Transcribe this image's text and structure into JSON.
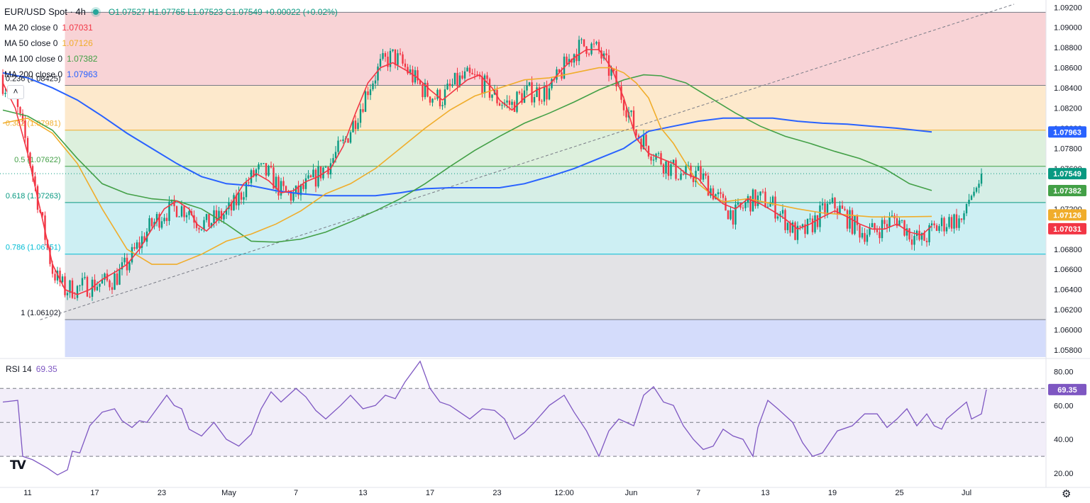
{
  "header": {
    "symbol": "EUR/USD Spot · 4h",
    "ohlc": "O1.07527 H1.07765 L1.07523 C1.07549 +0.00022 (+0.02%)"
  },
  "ma_legend": [
    {
      "label": "MA 20 close 0",
      "value": "1.07031",
      "color": "#f23645"
    },
    {
      "label": "MA 50 close 0",
      "value": "1.07126",
      "color": "#f0ad2b"
    },
    {
      "label": "MA 100 close 0",
      "value": "1.07382",
      "color": "#43a047"
    },
    {
      "label": "MA 200 close 0",
      "value": "1.07963",
      "color": "#2962ff"
    }
  ],
  "rsi_legend": {
    "label": "RSI 14",
    "value": "69.35"
  },
  "chart_data": {
    "type": "candlestick",
    "title": "EUR/USD Spot · 4h",
    "price_axis": {
      "range": [
        1.0573,
        1.0923
      ],
      "ticks": [
        "1.09200",
        "1.09000",
        "1.08800",
        "1.08600",
        "1.08400",
        "1.08200",
        "1.08000",
        "1.07800",
        "1.07600",
        "1.07400",
        "1.07200",
        "1.07000",
        "1.06800",
        "1.06600",
        "1.06400",
        "1.06200",
        "1.06000",
        "1.05800"
      ]
    },
    "time_axis": {
      "labels": [
        "11",
        "17",
        "23",
        "May",
        "7",
        "13",
        "17",
        "23",
        "12:00",
        "Jun",
        "7",
        "13",
        "19",
        "25",
        "Jul"
      ]
    },
    "fibonacci": [
      {
        "label": "0.236 (1.08425)",
        "level": 1.08425,
        "fill": "#f8d3d6"
      },
      {
        "label": "0.382 (1.07981)",
        "level": 1.07981,
        "fill": "#fde9cc"
      },
      {
        "label": "0.5 (1.07622)",
        "level": 1.07622,
        "fill": "#ddf0dd"
      },
      {
        "label": "0.618 (1.07263)",
        "level": 1.07263,
        "fill": "#d6eee6"
      },
      {
        "label": "0.786 (1.06751)",
        "level": 1.06751,
        "fill": "#cdeff3"
      },
      {
        "label": "1 (1.06102)",
        "level": 1.06102,
        "fill": "#e3e3e6"
      }
    ],
    "fib_top_level": 1.0915,
    "fib_bottom_extension_fill": "#d4dcfb",
    "price_tags": [
      {
        "value": "1.07963",
        "price": 1.07963,
        "color": "#2962ff"
      },
      {
        "value": "1.07549",
        "price": 1.07549,
        "color": "#089981"
      },
      {
        "value": "1.07382",
        "price": 1.07382,
        "color": "#43a047"
      },
      {
        "value": "1.07126",
        "price": 1.07126,
        "color": "#f0ad2b"
      },
      {
        "value": "1.07031",
        "price": 1.07031,
        "color": "#f23645"
      }
    ],
    "last_price": 1.07549,
    "ma20": [
      [
        0,
        1.0845
      ],
      [
        5,
        1.082
      ],
      [
        10,
        1.0775
      ],
      [
        15,
        1.072
      ],
      [
        20,
        1.0665
      ],
      [
        25,
        1.064
      ],
      [
        30,
        1.0635
      ],
      [
        35,
        1.064
      ],
      [
        40,
        1.065
      ],
      [
        45,
        1.0657
      ],
      [
        50,
        1.0665
      ],
      [
        55,
        1.068
      ],
      [
        60,
        1.07
      ],
      [
        65,
        1.072
      ],
      [
        70,
        1.0728
      ],
      [
        75,
        1.072
      ],
      [
        78,
        1.0705
      ],
      [
        82,
        1.0698
      ],
      [
        87,
        1.071
      ],
      [
        92,
        1.0725
      ],
      [
        97,
        1.0745
      ],
      [
        102,
        1.0755
      ],
      [
        107,
        1.0748
      ],
      [
        112,
        1.0736
      ],
      [
        117,
        1.0738
      ],
      [
        122,
        1.0747
      ],
      [
        127,
        1.0752
      ],
      [
        132,
        1.076
      ],
      [
        137,
        1.0782
      ],
      [
        142,
        1.0815
      ],
      [
        147,
        1.0845
      ],
      [
        152,
        1.086
      ],
      [
        157,
        1.0865
      ],
      [
        162,
        1.0858
      ],
      [
        167,
        1.085
      ],
      [
        172,
        1.0838
      ],
      [
        177,
        1.0828
      ],
      [
        182,
        1.0838
      ],
      [
        187,
        1.0848
      ],
      [
        192,
        1.0853
      ],
      [
        197,
        1.084
      ],
      [
        200,
        1.0828
      ],
      [
        205,
        1.0818
      ],
      [
        210,
        1.083
      ],
      [
        215,
        1.0838
      ],
      [
        220,
        1.0843
      ],
      [
        225,
        1.0858
      ],
      [
        230,
        1.087
      ],
      [
        235,
        1.0878
      ],
      [
        240,
        1.0878
      ],
      [
        245,
        1.086
      ],
      [
        250,
        1.083
      ],
      [
        255,
        1.079
      ],
      [
        260,
        1.0775
      ],
      [
        265,
        1.077
      ],
      [
        270,
        1.0765
      ],
      [
        275,
        1.0755
      ],
      [
        280,
        1.075
      ],
      [
        285,
        1.0735
      ],
      [
        290,
        1.0725
      ],
      [
        295,
        1.072
      ],
      [
        300,
        1.073
      ],
      [
        305,
        1.0725
      ],
      [
        310,
        1.0718
      ],
      [
        315,
        1.071
      ],
      [
        320,
        1.07
      ],
      [
        325,
        1.0705
      ],
      [
        330,
        1.0712
      ],
      [
        335,
        1.0718
      ],
      [
        340,
        1.0712
      ],
      [
        345,
        1.0705
      ],
      [
        350,
        1.07
      ],
      [
        355,
        1.07
      ],
      [
        360,
        1.0705
      ],
      [
        365,
        1.0697
      ],
      [
        370,
        1.0694
      ],
      [
        374,
        1.0703
      ]
    ],
    "ma50": [
      [
        0,
        1.0805
      ],
      [
        10,
        1.081
      ],
      [
        20,
        1.0795
      ],
      [
        30,
        1.0765
      ],
      [
        40,
        1.072
      ],
      [
        50,
        1.068
      ],
      [
        60,
        1.0665
      ],
      [
        70,
        1.0665
      ],
      [
        80,
        1.0675
      ],
      [
        90,
        1.0688
      ],
      [
        100,
        1.0695
      ],
      [
        110,
        1.0705
      ],
      [
        120,
        1.0718
      ],
      [
        130,
        1.0735
      ],
      [
        140,
        1.0745
      ],
      [
        150,
        1.076
      ],
      [
        160,
        1.078
      ],
      [
        170,
        1.08
      ],
      [
        180,
        1.0818
      ],
      [
        190,
        1.0832
      ],
      [
        200,
        1.084
      ],
      [
        210,
        1.0848
      ],
      [
        220,
        1.085
      ],
      [
        230,
        1.0855
      ],
      [
        240,
        1.086
      ],
      [
        245,
        1.086
      ],
      [
        250,
        1.0855
      ],
      [
        255,
        1.0845
      ],
      [
        260,
        1.083
      ],
      [
        265,
        1.08
      ],
      [
        270,
        1.0785
      ],
      [
        275,
        1.0765
      ],
      [
        280,
        1.0745
      ],
      [
        285,
        1.0735
      ],
      [
        290,
        1.0727
      ],
      [
        300,
        1.073
      ],
      [
        310,
        1.0725
      ],
      [
        320,
        1.072
      ],
      [
        330,
        1.0716
      ],
      [
        340,
        1.0714
      ],
      [
        350,
        1.0712
      ],
      [
        360,
        1.0712
      ],
      [
        374,
        1.07126
      ]
    ],
    "ma100": [
      [
        0,
        1.0818
      ],
      [
        10,
        1.0812
      ],
      [
        20,
        1.0798
      ],
      [
        30,
        1.077
      ],
      [
        40,
        1.0745
      ],
      [
        50,
        1.0735
      ],
      [
        60,
        1.073
      ],
      [
        70,
        1.0728
      ],
      [
        80,
        1.072
      ],
      [
        90,
        1.0705
      ],
      [
        100,
        1.0688
      ],
      [
        110,
        1.0687
      ],
      [
        120,
        1.069
      ],
      [
        130,
        1.0697
      ],
      [
        140,
        1.0707
      ],
      [
        150,
        1.0718
      ],
      [
        160,
        1.073
      ],
      [
        170,
        1.0745
      ],
      [
        180,
        1.0762
      ],
      [
        190,
        1.0778
      ],
      [
        200,
        1.0792
      ],
      [
        210,
        1.0805
      ],
      [
        220,
        1.0815
      ],
      [
        230,
        1.0826
      ],
      [
        240,
        1.0838
      ],
      [
        250,
        1.0848
      ],
      [
        258,
        1.0853
      ],
      [
        265,
        1.0852
      ],
      [
        275,
        1.0845
      ],
      [
        285,
        1.083
      ],
      [
        295,
        1.0815
      ],
      [
        305,
        1.0802
      ],
      [
        315,
        1.0792
      ],
      [
        325,
        1.0785
      ],
      [
        335,
        1.0777
      ],
      [
        345,
        1.077
      ],
      [
        355,
        1.076
      ],
      [
        365,
        1.0745
      ],
      [
        374,
        1.07382
      ]
    ],
    "ma200": [
      [
        0,
        1.0855
      ],
      [
        10,
        1.085
      ],
      [
        20,
        1.084
      ],
      [
        30,
        1.0828
      ],
      [
        40,
        1.0812
      ],
      [
        50,
        1.0795
      ],
      [
        60,
        1.078
      ],
      [
        70,
        1.0765
      ],
      [
        80,
        1.0752
      ],
      [
        90,
        1.0745
      ],
      [
        100,
        1.0743
      ],
      [
        110,
        1.0738
      ],
      [
        120,
        1.0735
      ],
      [
        130,
        1.0733
      ],
      [
        140,
        1.0733
      ],
      [
        150,
        1.0733
      ],
      [
        160,
        1.0736
      ],
      [
        170,
        1.074
      ],
      [
        180,
        1.0741
      ],
      [
        190,
        1.0741
      ],
      [
        200,
        1.0741
      ],
      [
        210,
        1.0745
      ],
      [
        220,
        1.0752
      ],
      [
        230,
        1.076
      ],
      [
        240,
        1.077
      ],
      [
        250,
        1.078
      ],
      [
        260,
        1.0797
      ],
      [
        270,
        1.0802
      ],
      [
        280,
        1.0807
      ],
      [
        290,
        1.081
      ],
      [
        300,
        1.081
      ],
      [
        310,
        1.081
      ],
      [
        320,
        1.0807
      ],
      [
        330,
        1.0805
      ],
      [
        340,
        1.0804
      ],
      [
        350,
        1.0802
      ],
      [
        360,
        1.08
      ],
      [
        374,
        1.07963
      ]
    ],
    "trendline": {
      "from": [
        15,
        1.061
      ],
      "to": [
        390,
        1.0909
      ]
    },
    "rsi": {
      "label": "RSI 14",
      "value": 69.35,
      "levels": [
        70,
        50,
        30
      ],
      "ticks": [
        "80.00",
        "60.00",
        "40.00",
        "20.00"
      ],
      "range": [
        15,
        86
      ],
      "points": [
        [
          0,
          62
        ],
        [
          6,
          63
        ],
        [
          8,
          30
        ],
        [
          12,
          28
        ],
        [
          18,
          23
        ],
        [
          22,
          19
        ],
        [
          26,
          22
        ],
        [
          28,
          33
        ],
        [
          31,
          32
        ],
        [
          35,
          48
        ],
        [
          40,
          56
        ],
        [
          45,
          58
        ],
        [
          48,
          51
        ],
        [
          52,
          47
        ],
        [
          55,
          51
        ],
        [
          58,
          50
        ],
        [
          62,
          58
        ],
        [
          66,
          66
        ],
        [
          69,
          60
        ],
        [
          72,
          58
        ],
        [
          75,
          46
        ],
        [
          80,
          42
        ],
        [
          85,
          50
        ],
        [
          90,
          40
        ],
        [
          95,
          36
        ],
        [
          100,
          43
        ],
        [
          104,
          58
        ],
        [
          108,
          68
        ],
        [
          112,
          62
        ],
        [
          118,
          70
        ],
        [
          122,
          65
        ],
        [
          126,
          57
        ],
        [
          130,
          52
        ],
        [
          136,
          60
        ],
        [
          140,
          66
        ],
        [
          145,
          58
        ],
        [
          150,
          60
        ],
        [
          154,
          66
        ],
        [
          158,
          64
        ],
        [
          162,
          74
        ],
        [
          166,
          82
        ],
        [
          168,
          86
        ],
        [
          172,
          70
        ],
        [
          176,
          62
        ],
        [
          180,
          60
        ],
        [
          184,
          56
        ],
        [
          188,
          52
        ],
        [
          193,
          58
        ],
        [
          198,
          57
        ],
        [
          202,
          52
        ],
        [
          206,
          40
        ],
        [
          210,
          44
        ],
        [
          214,
          50
        ],
        [
          220,
          60
        ],
        [
          226,
          66
        ],
        [
          230,
          56
        ],
        [
          235,
          45
        ],
        [
          240,
          30
        ],
        [
          244,
          45
        ],
        [
          248,
          52
        ],
        [
          254,
          48
        ],
        [
          258,
          66
        ],
        [
          262,
          71
        ],
        [
          266,
          62
        ],
        [
          270,
          60
        ],
        [
          274,
          48
        ],
        [
          278,
          40
        ],
        [
          282,
          34
        ],
        [
          286,
          36
        ],
        [
          290,
          46
        ],
        [
          294,
          42
        ],
        [
          298,
          40
        ],
        [
          302,
          30
        ],
        [
          304,
          47
        ],
        [
          306,
          55
        ],
        [
          308,
          63
        ],
        [
          312,
          58
        ],
        [
          318,
          50
        ],
        [
          322,
          38
        ],
        [
          326,
          30
        ],
        [
          330,
          32
        ],
        [
          336,
          45
        ],
        [
          342,
          48
        ],
        [
          347,
          55
        ],
        [
          352,
          55
        ],
        [
          356,
          47
        ],
        [
          360,
          52
        ],
        [
          364,
          58
        ],
        [
          368,
          48
        ],
        [
          372,
          55
        ],
        [
          375,
          48
        ],
        [
          378,
          46
        ],
        [
          380,
          52
        ],
        [
          384,
          57
        ],
        [
          388,
          62
        ],
        [
          390,
          52
        ],
        [
          394,
          55
        ],
        [
          396,
          69.35
        ]
      ]
    },
    "candles_summary": "Spot 4h candles, approx 395 bars, range 1.0601 to 1.0917"
  }
}
